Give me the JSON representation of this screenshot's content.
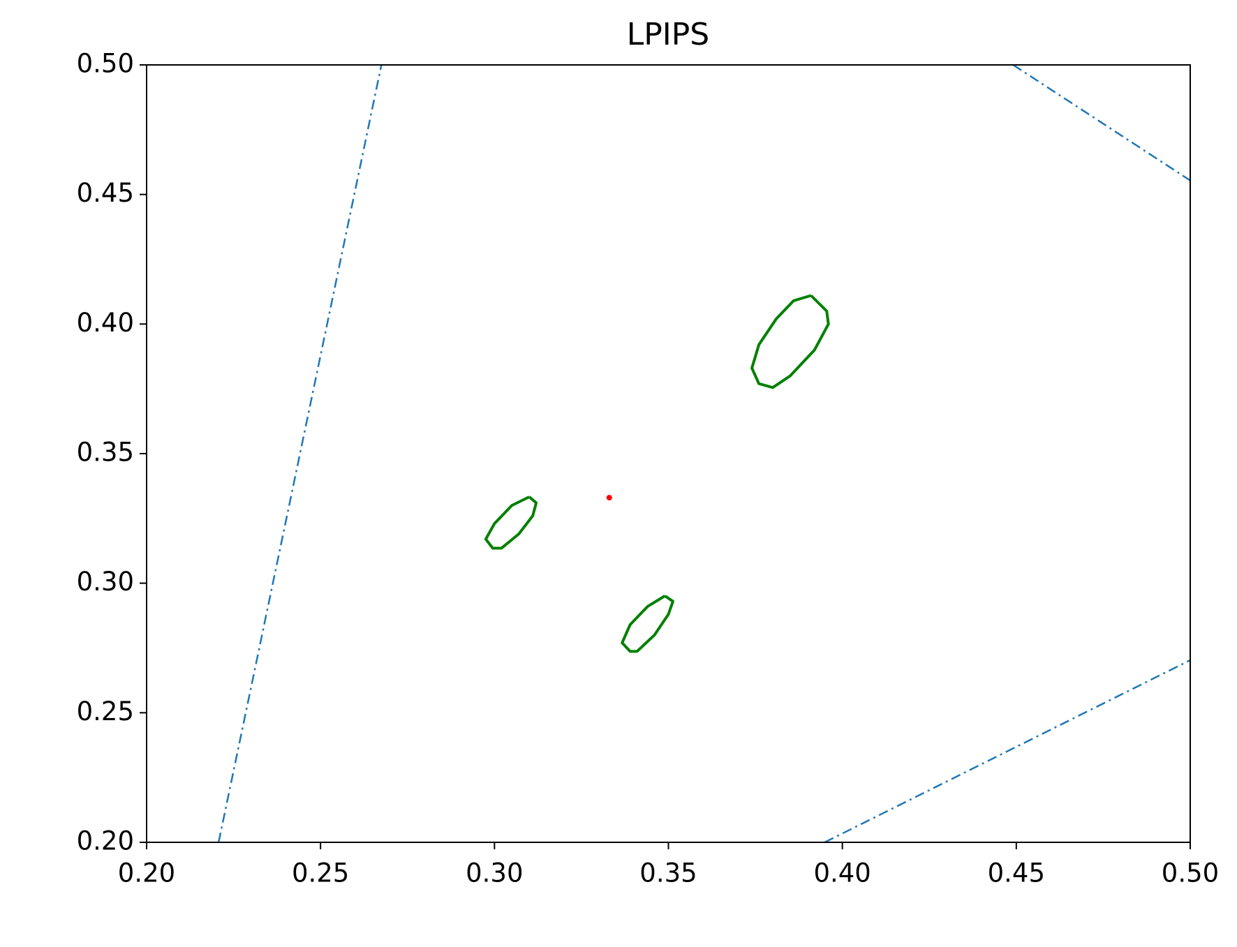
{
  "chart_data": {
    "type": "line",
    "title": "LPIPS",
    "xlim": [
      0.2,
      0.5
    ],
    "ylim": [
      0.2,
      0.5
    ],
    "xticks": [
      {
        "value": 0.2,
        "label": "0.20"
      },
      0.25,
      {
        "value": 0.3,
        "label": "0.30"
      },
      0.35,
      {
        "value": 0.4,
        "label": "0.40"
      },
      0.45,
      {
        "value": 0.5,
        "label": "0.50"
      }
    ],
    "yticks": [
      {
        "value": 0.2,
        "label": "0.20"
      },
      0.25,
      {
        "value": 0.3,
        "label": "0.30"
      },
      0.35,
      {
        "value": 0.4,
        "label": "0.40"
      },
      0.45,
      {
        "value": 0.5,
        "label": "0.50"
      }
    ],
    "grid": false,
    "series": [
      {
        "color": "#1f77b4",
        "style": "dashdot",
        "x": [
          0.2207,
          0.2675
        ],
        "values": [
          0.2,
          0.5
        ]
      },
      {
        "color": "#1f77b4",
        "style": "dashdot",
        "x": [
          0.4491,
          0.5
        ],
        "values": [
          0.5,
          0.4554
        ]
      },
      {
        "color": "#1f77b4",
        "style": "dashdot",
        "x": [
          0.3949,
          0.5
        ],
        "values": [
          0.2,
          0.2703
        ]
      },
      {
        "color": "#008000",
        "style": "solid",
        "x": [
          0.391,
          0.3955,
          0.396,
          0.392,
          0.385,
          0.38,
          0.376,
          0.374,
          0.376,
          0.381,
          0.386,
          0.391
        ],
        "values": [
          0.411,
          0.405,
          0.4,
          0.39,
          0.38,
          0.3755,
          0.377,
          0.383,
          0.392,
          0.402,
          0.409,
          0.411
        ]
      },
      {
        "color": "#008000",
        "style": "solid",
        "x": [
          0.31,
          0.312,
          0.311,
          0.307,
          0.302,
          0.2995,
          0.2975,
          0.3,
          0.305,
          0.31
        ],
        "values": [
          0.3333,
          0.331,
          0.326,
          0.319,
          0.3135,
          0.3135,
          0.317,
          0.323,
          0.33,
          0.3333
        ]
      },
      {
        "color": "#008000",
        "style": "solid",
        "x": [
          0.349,
          0.3513,
          0.35,
          0.346,
          0.341,
          0.339,
          0.3367,
          0.339,
          0.344,
          0.349
        ],
        "values": [
          0.2951,
          0.293,
          0.288,
          0.28,
          0.2737,
          0.2737,
          0.277,
          0.284,
          0.291,
          0.2951
        ]
      },
      {
        "color": "#ff0000",
        "style": "none",
        "x": [
          0.333
        ],
        "values": [
          0.333
        ]
      }
    ]
  }
}
